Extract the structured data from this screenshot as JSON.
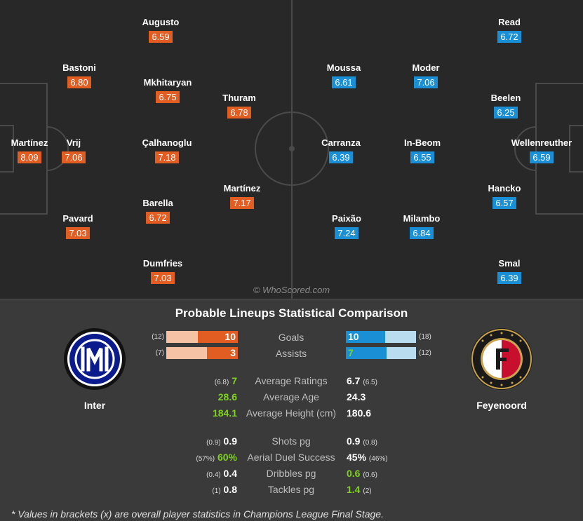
{
  "pitch": {
    "watermark": "© WhoScored.com",
    "home_players": [
      {
        "name": "Martínez",
        "rating": "8.09"
      },
      {
        "name": "Bastoni",
        "rating": "6.80"
      },
      {
        "name": "Vrij",
        "rating": "7.06"
      },
      {
        "name": "Pavard",
        "rating": "7.03"
      },
      {
        "name": "Augusto",
        "rating": "6.59"
      },
      {
        "name": "Mkhitaryan",
        "rating": "6.75"
      },
      {
        "name": "Çalhanoglu",
        "rating": "7.18"
      },
      {
        "name": "Barella",
        "rating": "6.72"
      },
      {
        "name": "Dumfries",
        "rating": "7.03"
      },
      {
        "name": "Thuram",
        "rating": "6.78"
      },
      {
        "name": "Martínez",
        "rating": "7.17"
      }
    ],
    "away_players": [
      {
        "name": "Moussa",
        "rating": "6.61"
      },
      {
        "name": "Carranza",
        "rating": "6.39"
      },
      {
        "name": "Paixão",
        "rating": "7.24"
      },
      {
        "name": "Moder",
        "rating": "7.06"
      },
      {
        "name": "In-Beom",
        "rating": "6.55"
      },
      {
        "name": "Milambo",
        "rating": "6.84"
      },
      {
        "name": "Read",
        "rating": "6.72"
      },
      {
        "name": "Beelen",
        "rating": "6.25"
      },
      {
        "name": "Hancko",
        "rating": "6.57"
      },
      {
        "name": "Smal",
        "rating": "6.39"
      },
      {
        "name": "Wellenreuther",
        "rating": "6.59"
      }
    ]
  },
  "stats": {
    "title": "Probable Lineups Statistical Comparison",
    "home_team": {
      "name": "Inter",
      "crest": "inter-crest-icon",
      "color": "#0b1a8c"
    },
    "away_team": {
      "name": "Feyenoord",
      "crest": "feyenoord-crest-icon",
      "color": "#c8102e"
    },
    "bars": [
      {
        "label": "Goals",
        "home_value": "10",
        "home_bracket": "(12)",
        "home_fill": 0.56,
        "away_value": "10",
        "away_bracket": "(18)",
        "away_fill": 0.56
      },
      {
        "label": "Assists",
        "home_value": "3",
        "home_bracket": "(7)",
        "home_fill": 0.43,
        "away_value": "7",
        "away_bracket": "(12)",
        "away_fill": 0.58
      }
    ],
    "general": [
      {
        "label": "Average Ratings",
        "home_bracket": "(6.8)",
        "home_value": "7",
        "home_green": true,
        "away_value": "6.7",
        "away_bracket": "(6.5)",
        "away_green": false
      },
      {
        "label": "Average Age",
        "home_bracket": "",
        "home_value": "28.6",
        "home_green": true,
        "away_value": "24.3",
        "away_bracket": "",
        "away_green": false
      },
      {
        "label": "Average Height (cm)",
        "home_bracket": "",
        "home_value": "184.1",
        "home_green": true,
        "away_value": "180.6",
        "away_bracket": "",
        "away_green": false
      }
    ],
    "detail": [
      {
        "label": "Shots pg",
        "home_bracket": "(0.9)",
        "home_value": "0.9",
        "home_green": false,
        "away_value": "0.9",
        "away_bracket": "(0.8)",
        "away_green": false
      },
      {
        "label": "Aerial Duel Success",
        "home_bracket": "(57%)",
        "home_value": "60%",
        "home_green": true,
        "away_value": "45%",
        "away_bracket": "(46%)",
        "away_green": false
      },
      {
        "label": "Dribbles pg",
        "home_bracket": "(0.4)",
        "home_value": "0.4",
        "home_green": false,
        "away_value": "0.6",
        "away_bracket": "(0.6)",
        "away_green": true
      },
      {
        "label": "Tackles pg",
        "home_bracket": "(1)",
        "home_value": "0.8",
        "home_green": false,
        "away_value": "1.4",
        "away_bracket": "(2)",
        "away_green": true
      }
    ],
    "footnote": "* Values in brackets (x) are overall player statistics in Champions League Final Stage."
  }
}
